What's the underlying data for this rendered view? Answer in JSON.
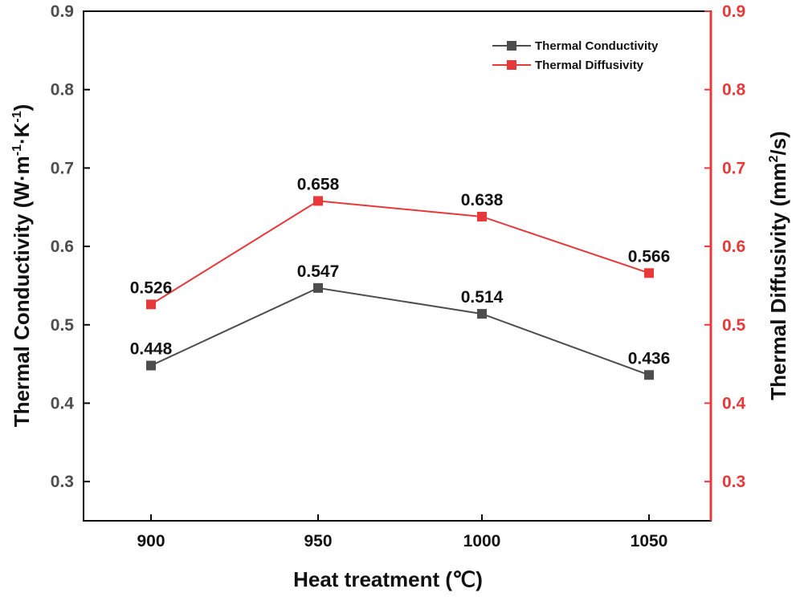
{
  "chart_data": {
    "type": "line",
    "x": [
      900,
      950,
      1000,
      1050
    ],
    "x_ticks": [
      "900",
      "950",
      "1000",
      "1050"
    ],
    "xlabel": "Heat treatment (℃)",
    "ylabel_left": "Thermal Conductivity (W·m",
    "ylabel_left_sup1": "-1",
    "ylabel_left_mid": "·K",
    "ylabel_left_sup2": "-1",
    "ylabel_left_end": ")",
    "ylabel_right": "Thermal Diffusivity (mm",
    "ylabel_right_sup": "2",
    "ylabel_right_end": "/s)",
    "ylim_left": [
      0.25,
      0.9
    ],
    "ylim_right": [
      0.25,
      0.9
    ],
    "y_ticks": [
      "0.3",
      "0.4",
      "0.5",
      "0.6",
      "0.7",
      "0.8",
      "0.9"
    ],
    "legend_position": "top-right",
    "series": [
      {
        "name": "Thermal Conductivity",
        "axis": "left",
        "color": "#4d4d4d",
        "values": [
          0.448,
          0.547,
          0.514,
          0.436
        ],
        "labels": [
          "0.448",
          "0.547",
          "0.514",
          "0.436"
        ]
      },
      {
        "name": "Thermal Diffusivity",
        "axis": "right",
        "color": "#e8393a",
        "values": [
          0.526,
          0.658,
          0.638,
          0.566
        ],
        "labels": [
          "0.526",
          "0.658",
          "0.638",
          "0.566"
        ]
      }
    ],
    "right_axis_color": "#e8393a",
    "grid": false
  }
}
